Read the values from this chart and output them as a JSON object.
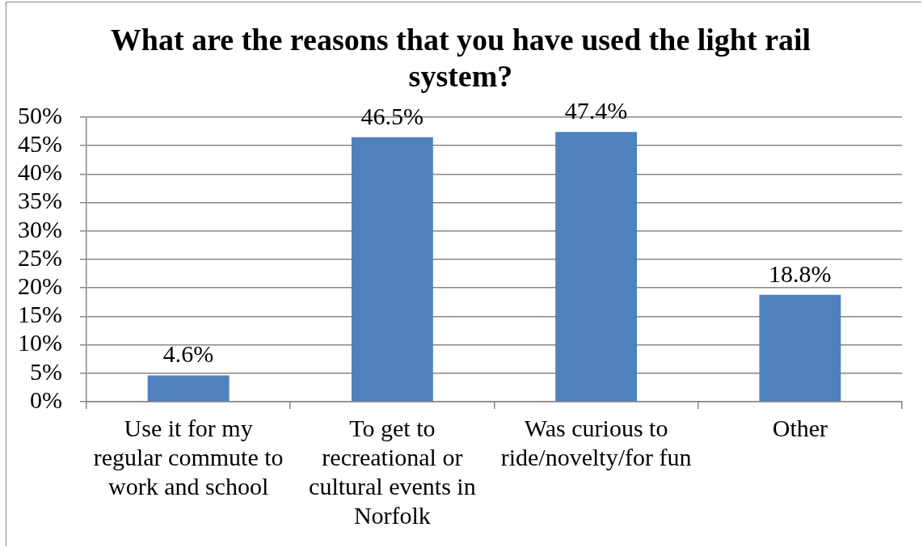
{
  "chart_data": {
    "type": "bar",
    "title": "What are the reasons that you have used the light rail system?",
    "categories": [
      "Use it for my regular commute to work and school",
      "To get to recreational or cultural events in Norfolk",
      "Was curious to ride/novelty/for fun",
      "Other"
    ],
    "values": [
      4.6,
      46.5,
      47.4,
      18.8
    ],
    "color": "#4f81bd",
    "value_labels": [
      "4.6%",
      "46.5%",
      "47.4%",
      "18.8%"
    ],
    "ylim": [
      0,
      50
    ],
    "yticks": [
      {
        "value": 0,
        "label": "0%"
      },
      {
        "value": 5,
        "label": "5%"
      },
      {
        "value": 10,
        "label": "10%"
      },
      {
        "value": 15,
        "label": "15%"
      },
      {
        "value": 20,
        "label": "20%"
      },
      {
        "value": 25,
        "label": "25%"
      },
      {
        "value": 30,
        "label": "30%"
      },
      {
        "value": 35,
        "label": "35%"
      },
      {
        "value": 40,
        "label": "40%"
      },
      {
        "value": 45,
        "label": "45%"
      },
      {
        "value": 50,
        "label": "50%"
      }
    ],
    "grid": "y"
  }
}
